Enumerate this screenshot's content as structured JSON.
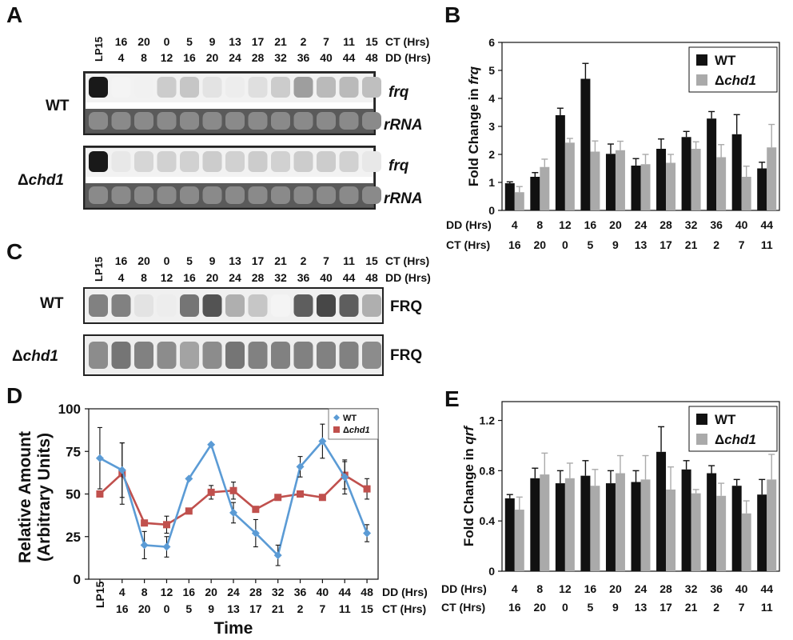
{
  "panels": {
    "A": "A",
    "B": "B",
    "C": "C",
    "D": "D",
    "E": "E"
  },
  "blotA": {
    "lanes": [
      "LP15",
      "16",
      "20",
      "0",
      "5",
      "9",
      "13",
      "17",
      "21",
      "2",
      "7",
      "11",
      "15"
    ],
    "lanes_dd": [
      "",
      "4",
      "8",
      "12",
      "16",
      "20",
      "24",
      "28",
      "32",
      "36",
      "40",
      "44",
      "48"
    ],
    "ct_label": "CT (Hrs)",
    "dd_label": "DD (Hrs)",
    "wt": "WT",
    "mut_delta": "Δ",
    "mut_name": "chd1",
    "frq": "frq",
    "rrna": "rRNA",
    "wt_frq_intensity": [
      1.0,
      0.05,
      0.06,
      0.22,
      0.25,
      0.12,
      0.08,
      0.14,
      0.22,
      0.42,
      0.3,
      0.3,
      0.28
    ],
    "mut_frq_intensity": [
      1.0,
      0.1,
      0.18,
      0.2,
      0.2,
      0.22,
      0.2,
      0.22,
      0.2,
      0.22,
      0.22,
      0.2,
      0.1
    ]
  },
  "blotC": {
    "lanes": [
      "LP15",
      "16",
      "20",
      "0",
      "5",
      "9",
      "13",
      "17",
      "21",
      "2",
      "7",
      "11",
      "15"
    ],
    "lanes_dd": [
      "",
      "4",
      "8",
      "12",
      "16",
      "20",
      "24",
      "28",
      "32",
      "36",
      "40",
      "44",
      "48"
    ],
    "ct_label": "CT (Hrs)",
    "dd_label": "DD (Hrs)",
    "wt": "WT",
    "mut_delta": "Δ",
    "mut_name": "chd1",
    "protein": "FRQ",
    "wt_intensity": [
      0.55,
      0.55,
      0.12,
      0.08,
      0.6,
      0.75,
      0.35,
      0.25,
      0.05,
      0.7,
      0.8,
      0.7,
      0.35
    ],
    "mut_intensity": [
      0.5,
      0.6,
      0.55,
      0.5,
      0.4,
      0.5,
      0.6,
      0.55,
      0.55,
      0.55,
      0.55,
      0.55,
      0.5
    ]
  },
  "chart_data": [
    {
      "type": "bar",
      "panel": "B",
      "ylabel_pre": "Fold Change in ",
      "ylabel_gene": "frq",
      "ylim": [
        0,
        6
      ],
      "yticks": [
        "0",
        "1",
        "2",
        "3",
        "4",
        "5",
        "6"
      ],
      "row1_label": "DD (Hrs)",
      "row2_label": "CT (Hrs)",
      "categories": [
        "4",
        "8",
        "12",
        "16",
        "20",
        "24",
        "28",
        "32",
        "36",
        "40",
        "44"
      ],
      "ct": [
        "16",
        "20",
        "0",
        "5",
        "9",
        "13",
        "17",
        "21",
        "2",
        "7",
        "11"
      ],
      "legend_placement": "top-right",
      "series": [
        {
          "name": "WT",
          "color": "#111111",
          "values": [
            0.97,
            1.2,
            3.4,
            4.7,
            2.02,
            1.6,
            2.2,
            2.62,
            3.28,
            2.72,
            1.5
          ],
          "errors": [
            0.05,
            0.15,
            0.25,
            0.55,
            0.35,
            0.25,
            0.35,
            0.2,
            0.25,
            0.7,
            0.22
          ]
        },
        {
          "name": "Δchd1",
          "name_delta": "Δ",
          "name_gene": "chd1",
          "color": "#aaaaaa",
          "values": [
            0.65,
            1.55,
            2.42,
            2.1,
            2.15,
            1.65,
            1.7,
            2.2,
            1.9,
            1.2,
            2.25
          ],
          "errors": [
            0.2,
            0.28,
            0.15,
            0.38,
            0.32,
            0.35,
            0.3,
            0.25,
            0.45,
            0.38,
            0.82
          ]
        }
      ]
    },
    {
      "type": "line",
      "panel": "D",
      "ylabel1": "Relative Amount",
      "ylabel2": "(Arbitrary Units)",
      "xlabel": "Time",
      "ylim": [
        0,
        100
      ],
      "yticks": [
        "0",
        "25",
        "50",
        "75",
        "100"
      ],
      "row1_label": "DD (Hrs)",
      "row2_label": "CT (Hrs)",
      "categories": [
        "LP15",
        "4",
        "8",
        "12",
        "16",
        "20",
        "24",
        "28",
        "32",
        "36",
        "40",
        "44",
        "48"
      ],
      "ct": [
        "",
        "16",
        "20",
        "0",
        "5",
        "9",
        "13",
        "17",
        "21",
        "2",
        "7",
        "11",
        "15"
      ],
      "legend_placement": "top-right",
      "series": [
        {
          "name": "WT",
          "color": "#5b9bd5",
          "marker": "diamond",
          "values": [
            71,
            64,
            20,
            19,
            59,
            79,
            39,
            27,
            14,
            66,
            81,
            60,
            27
          ],
          "errors": [
            18,
            16,
            8,
            6,
            0,
            0,
            6,
            8,
            6,
            6,
            10,
            10,
            5
          ]
        },
        {
          "name": "Δchd1",
          "name_delta": "Δ",
          "name_gene": "chd1",
          "color": "#c0504d",
          "marker": "square",
          "values": [
            50,
            62,
            33,
            32,
            40,
            51,
            52,
            41,
            48,
            50,
            48,
            61,
            53
          ],
          "errors": [
            0,
            18,
            0,
            5,
            0,
            4,
            5,
            0,
            0,
            0,
            0,
            8,
            6
          ]
        }
      ]
    },
    {
      "type": "bar",
      "panel": "E",
      "ylabel_pre": "Fold Change in ",
      "ylabel_gene": "qrf",
      "ylim": [
        0,
        1.35
      ],
      "yticks": [
        "0",
        "0.4",
        "0.8",
        "1.2"
      ],
      "ytick_values": [
        0,
        0.4,
        0.8,
        1.2
      ],
      "row1_label": "DD (Hrs)",
      "row2_label": "CT (Hrs)",
      "categories": [
        "4",
        "8",
        "12",
        "16",
        "20",
        "24",
        "28",
        "32",
        "36",
        "40",
        "44"
      ],
      "ct": [
        "16",
        "20",
        "0",
        "5",
        "9",
        "13",
        "17",
        "21",
        "2",
        "7",
        "11"
      ],
      "legend_placement": "top-right",
      "series": [
        {
          "name": "WT",
          "color": "#111111",
          "values": [
            0.58,
            0.74,
            0.7,
            0.76,
            0.7,
            0.71,
            0.95,
            0.81,
            0.78,
            0.68,
            0.61
          ],
          "errors": [
            0.03,
            0.08,
            0.1,
            0.12,
            0.1,
            0.09,
            0.2,
            0.07,
            0.06,
            0.05,
            0.12
          ]
        },
        {
          "name": "Δchd1",
          "name_delta": "Δ",
          "name_gene": "chd1",
          "color": "#aaaaaa",
          "values": [
            0.49,
            0.77,
            0.74,
            0.68,
            0.78,
            0.73,
            0.65,
            0.62,
            0.6,
            0.46,
            0.73
          ],
          "errors": [
            0.1,
            0.17,
            0.12,
            0.13,
            0.14,
            0.19,
            0.18,
            0.03,
            0.1,
            0.1,
            0.2
          ]
        }
      ]
    }
  ]
}
